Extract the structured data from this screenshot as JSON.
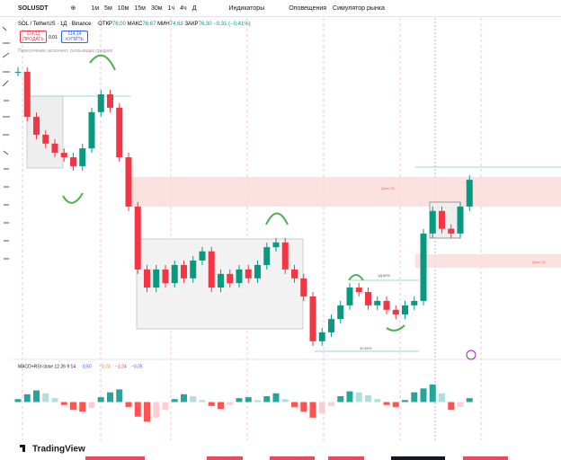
{
  "toolbar": {
    "symbol": "SOLUSDT",
    "intervals": [
      "1м",
      "5м",
      "10м",
      "15м",
      "30м",
      "1ч",
      "4ч",
      "Д"
    ],
    "indicators": "Индикаторы",
    "alerts": "Оповещения",
    "replay": "Симулятор рынка"
  },
  "legend": {
    "title": "SOL / TetherUS · 1Д · Binance",
    "open_label": "ОТКР",
    "open": "76,00",
    "high_label": "МАКС",
    "high": "76,67",
    "low_label": "МИН",
    "low": "74,63",
    "close_label": "ЗАКР",
    "close": "76,30",
    "change": "−0,31 (−0,41%)",
    "sell_price": "114,13",
    "sell": "ПРОДАТЬ",
    "spread": "0,01",
    "buy_price": "114,14",
    "buy": "КУПИТЬ",
    "indicator": "Пересечение экспонент, скользящих средних"
  },
  "annotations": {
    "zone1": "День 30",
    "zone2": "День 30",
    "fib1": "1Д 60%",
    "fib2": "30 60%"
  },
  "chart_data": [
    {
      "type": "candlestick",
      "closes": [
        149.5,
        135.3,
        129.7,
        126.9,
        124.0,
        122.6,
        119.8,
        125.4,
        136.8,
        142.4,
        138.2,
        122.6,
        107.1,
        87.3,
        81.6,
        87.3,
        83.0,
        88.7,
        84.5,
        90.1,
        93.0,
        81.6,
        85.9,
        83.0,
        87.3,
        84.5,
        88.7,
        94.3,
        95.8,
        87.3,
        84.5,
        78.8,
        64.7,
        67.5,
        71.7,
        76.0,
        81.6,
        80.2,
        76.0,
        77.4,
        74.6,
        73.1,
        76.0,
        77.4,
        98.6,
        105.7,
        100.1,
        98.6,
        107.1,
        115.5
      ],
      "ylim": [
        59,
        167
      ]
    },
    {
      "type": "histogram",
      "title": "MACD+RSI close 12 26 9 14",
      "stats": [
        "0,50",
        "−0,73",
        "−1,24",
        "−0,05"
      ],
      "values": [
        0.3,
        0.8,
        1.2,
        0.9,
        0.4,
        -0.3,
        -0.8,
        -1.0,
        -0.6,
        0.5,
        1.0,
        1.3,
        -0.5,
        -1.5,
        -2.0,
        -1.6,
        -0.8,
        0.3,
        0.8,
        0.6,
        0.2,
        -0.4,
        -0.7,
        -0.3,
        0.4,
        0.5,
        0.2,
        0.6,
        0.9,
        0.3,
        -0.5,
        -1.0,
        -1.6,
        -1.2,
        -0.4,
        0.6,
        1.1,
        1.0,
        0.7,
        0.3,
        -0.3,
        -0.5,
        0.2,
        1.0,
        1.4,
        1.8,
        0.9,
        -0.8,
        -0.5,
        0.4
      ],
      "ylim": [
        -3,
        3
      ]
    }
  ],
  "footer": {
    "logo": "TradingView"
  }
}
